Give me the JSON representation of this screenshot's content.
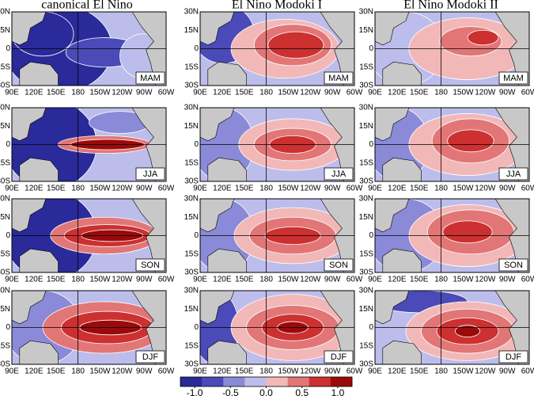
{
  "columns": [
    "canonical El Nino",
    "El Nino Modoki I",
    "El Nino Modoki II"
  ],
  "seasons": [
    "MAM",
    "JJA",
    "SON",
    "DJF"
  ],
  "lat_ticks": [
    "30N",
    "15N",
    "0",
    "15S",
    "30S"
  ],
  "lon_ticks": [
    "90E",
    "120E",
    "150E",
    "180",
    "150W",
    "120W",
    "90W",
    "60W"
  ],
  "colorbar": {
    "range": [
      -1.2,
      1.2
    ],
    "ticks": [
      {
        "value": -1,
        "label": "-1.0"
      },
      {
        "value": -0.5,
        "label": "-0.5"
      },
      {
        "value": 0,
        "label": "0.0"
      },
      {
        "value": 0.5,
        "label": "0.5"
      },
      {
        "value": 1,
        "label": "1.0"
      }
    ],
    "colors": [
      "#2a2a9a",
      "#4a4ab8",
      "#8a8ad8",
      "#bdbdec",
      "#f2b8b8",
      "#e27676",
      "#cc3030",
      "#9a0a0a"
    ]
  }
}
